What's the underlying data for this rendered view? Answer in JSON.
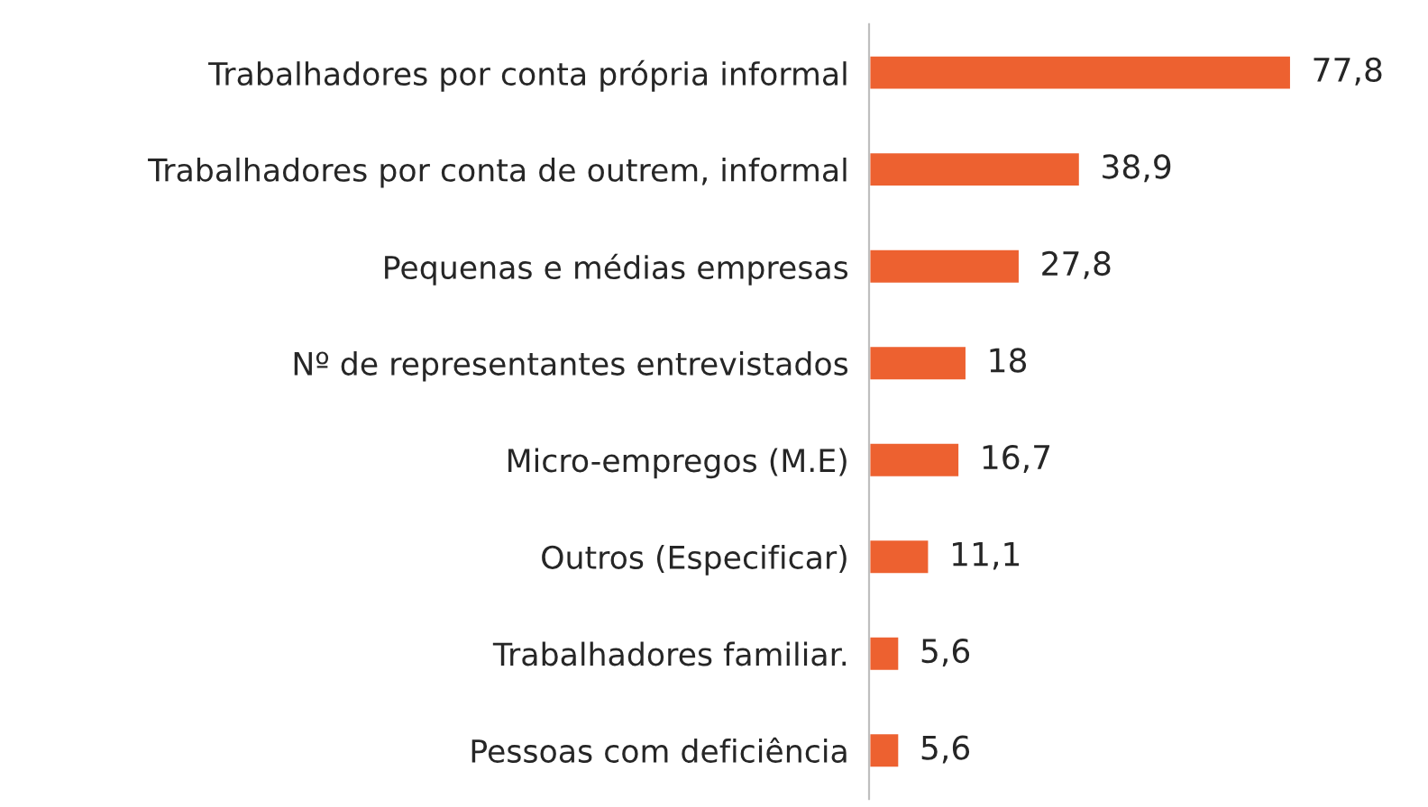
{
  "chart_data": {
    "type": "bar",
    "orientation": "horizontal",
    "categories": [
      "Trabalhadores por conta própria informal",
      "Trabalhadores por conta de outrem, informal",
      "Pequenas e médias empresas",
      "Nº de representantes entrevistados",
      "Micro-empregos (M.E)",
      "Outros (Especificar)",
      "Trabalhadores familiar.",
      "Pessoas com deficiência"
    ],
    "values": [
      77.8,
      38.9,
      27.8,
      18,
      16.7,
      11.1,
      5.6,
      5.6
    ],
    "value_labels": [
      "77,8",
      "38,9",
      "27,8",
      "18",
      "16,7",
      "11,1",
      "5,6",
      "5,6"
    ],
    "color": "#ed6130"
  }
}
